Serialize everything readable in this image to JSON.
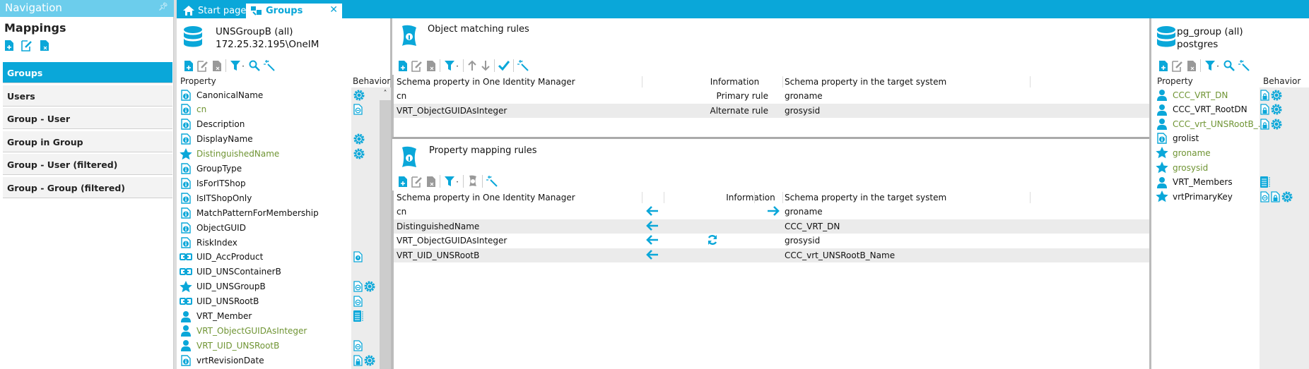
{
  "colors": {
    "accent": "#0aa7d9",
    "nav_header": "#6ccdec",
    "mapped_text": "#6f9433"
  },
  "navigation": {
    "title": "Navigation",
    "section": "Mappings",
    "items": [
      {
        "label": "Groups",
        "selected": true
      },
      {
        "label": "Users"
      },
      {
        "label": "Group - User"
      },
      {
        "label": "Group in Group"
      },
      {
        "label": "Group - User (filtered)"
      },
      {
        "label": "Group - Group (filtered)"
      }
    ]
  },
  "tabs": [
    {
      "label": "Start page",
      "icon": "home-icon"
    },
    {
      "label": "Groups",
      "icon": "groups-icon",
      "active": true
    }
  ],
  "left_panel": {
    "title": "UNSGroupB (all)",
    "subtitle": "172.25.32.195\\OneIM",
    "col_property": "Property",
    "col_behavior": "Behavior",
    "rows": [
      {
        "name": "CanonicalName",
        "icon": "info",
        "beh": [
          "gear"
        ]
      },
      {
        "name": "cn",
        "icon": "info",
        "mapped": true,
        "beh": [
          "doc-minus"
        ]
      },
      {
        "name": "Description",
        "icon": "info",
        "beh": []
      },
      {
        "name": "DisplayName",
        "icon": "info",
        "beh": [
          "gear"
        ]
      },
      {
        "name": "DistinguishedName",
        "icon": "star",
        "mapped": true,
        "beh": [
          "gear"
        ]
      },
      {
        "name": "GroupType",
        "icon": "info",
        "beh": []
      },
      {
        "name": "IsForITShop",
        "icon": "info",
        "beh": []
      },
      {
        "name": "IsITShopOnly",
        "icon": "info",
        "beh": []
      },
      {
        "name": "MatchPatternForMembership",
        "icon": "info",
        "beh": []
      },
      {
        "name": "ObjectGUID",
        "icon": "info",
        "beh": []
      },
      {
        "name": "RiskIndex",
        "icon": "info",
        "beh": []
      },
      {
        "name": "UID_AccProduct",
        "icon": "link",
        "beh": [
          "doc-info"
        ]
      },
      {
        "name": "UID_UNSContainerB",
        "icon": "link",
        "beh": []
      },
      {
        "name": "UID_UNSGroupB",
        "icon": "star",
        "beh": [
          "doc-minus",
          "gear"
        ]
      },
      {
        "name": "UID_UNSRootB",
        "icon": "link",
        "beh": [
          "doc-minus"
        ]
      },
      {
        "name": "VRT_Member",
        "icon": "user",
        "beh": [
          "list"
        ]
      },
      {
        "name": "VRT_ObjectGUIDAsInteger",
        "icon": "user",
        "mapped": true,
        "beh": []
      },
      {
        "name": "VRT_UID_UNSRootB",
        "icon": "user",
        "mapped": true,
        "beh": [
          "doc-minus"
        ]
      },
      {
        "name": "vrtRevisionDate",
        "icon": "info",
        "beh": [
          "doc-lock",
          "gear"
        ]
      }
    ]
  },
  "object_matching": {
    "title": "Object matching rules",
    "columns": [
      "Schema property in One Identity Manager",
      "Information",
      "Schema property in the target system"
    ],
    "rows": [
      {
        "source": "cn",
        "info": "Primary rule",
        "target": "groname"
      },
      {
        "source": "VRT_ObjectGUIDAsInteger",
        "info": "Alternate rule",
        "target": "grosysid"
      }
    ]
  },
  "property_mapping": {
    "title": "Property mapping rules",
    "columns": [
      "Schema property in One Identity Manager",
      "Information",
      "Schema property in the target system"
    ],
    "rows": [
      {
        "source": "cn",
        "left_arrow": true,
        "right_arrow": true,
        "info_icon": "",
        "target": "groname"
      },
      {
        "source": "DistinguishedName",
        "left_arrow": true,
        "right_arrow": false,
        "info_icon": "",
        "target": "CCC_VRT_DN"
      },
      {
        "source": "VRT_ObjectGUIDAsInteger",
        "left_arrow": true,
        "right_arrow": false,
        "info_icon": "refresh-icon",
        "target": "grosysid"
      },
      {
        "source": "VRT_UID_UNSRootB",
        "left_arrow": true,
        "right_arrow": false,
        "info_icon": "",
        "target": "CCC_vrt_UNSRootB_Name"
      }
    ]
  },
  "right_panel": {
    "title": "pg_group (all)",
    "subtitle": "postgres",
    "col_property": "Property",
    "col_behavior": "Behavior",
    "rows": [
      {
        "name": "CCC_VRT_DN",
        "icon": "user",
        "mapped": true,
        "beh": [
          "doc-lock",
          "gear"
        ]
      },
      {
        "name": "CCC_VRT_RootDN",
        "icon": "user",
        "beh": [
          "doc-lock",
          "gear"
        ]
      },
      {
        "name": "CCC_vrt_UNSRootB_...",
        "icon": "user",
        "mapped": true,
        "beh": [
          "doc-lock",
          "gear"
        ]
      },
      {
        "name": "grolist",
        "icon": "info",
        "beh": []
      },
      {
        "name": "groname",
        "icon": "star",
        "mapped": true,
        "beh": []
      },
      {
        "name": "grosysid",
        "icon": "star",
        "mapped": true,
        "beh": []
      },
      {
        "name": "VRT_Members",
        "icon": "user",
        "beh": [
          "list"
        ]
      },
      {
        "name": "vrtPrimaryKey",
        "icon": "star",
        "beh": [
          "doc-minus",
          "doc-lock",
          "gear"
        ]
      }
    ]
  }
}
